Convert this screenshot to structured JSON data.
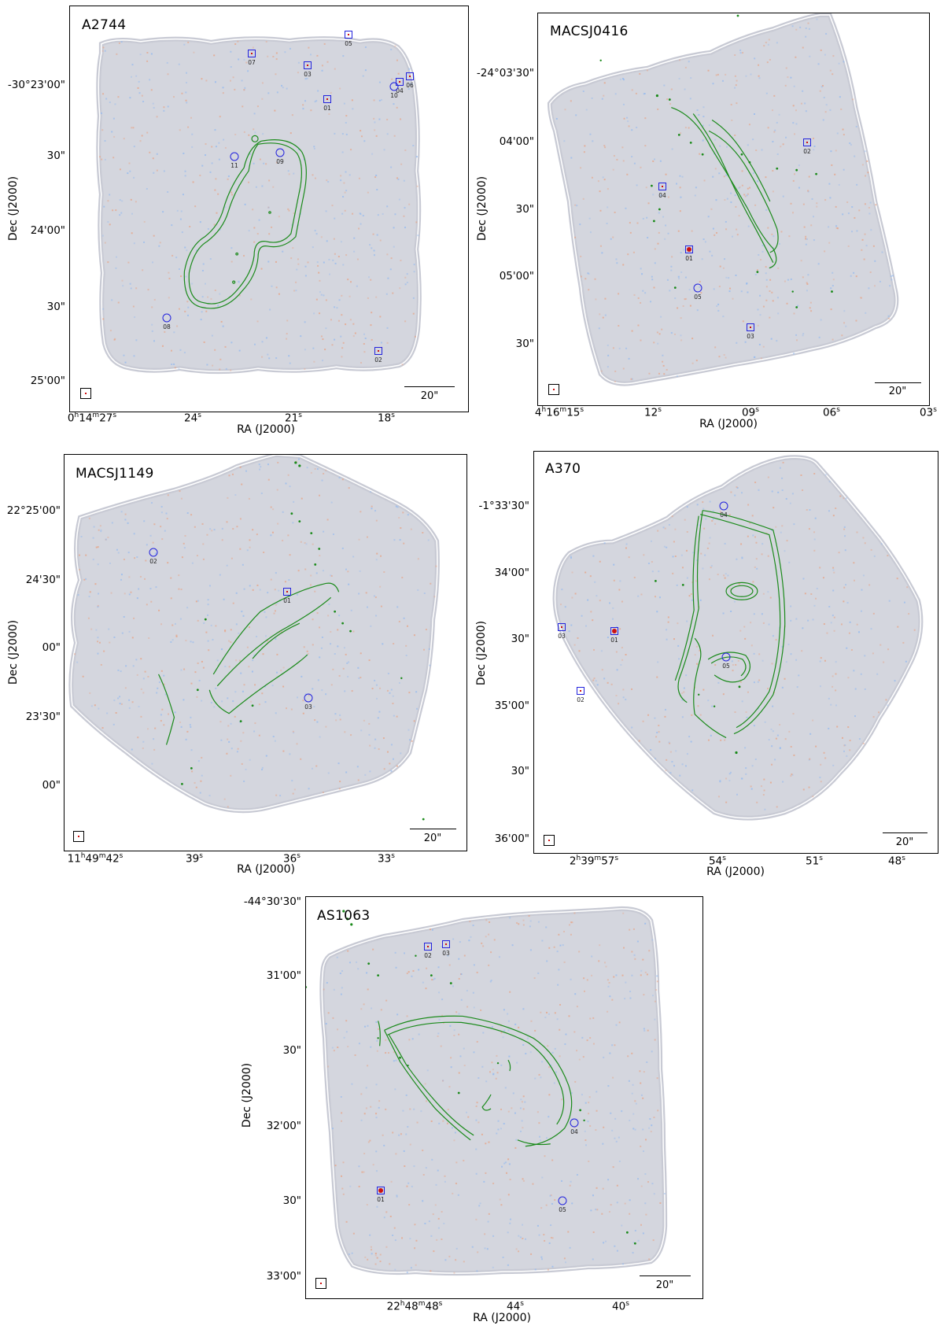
{
  "colors": {
    "contour": "#1a8a1a",
    "marker": "#2222dd",
    "map_fill": "#d4d6de",
    "map_edge": "#ffffff",
    "noise_red": "#e8a080",
    "noise_blue": "#90b8f0"
  },
  "panels": [
    {
      "id": "a2744",
      "title": "A2744",
      "xlabel": "RA (J2000)",
      "ylabel": "Dec (J2000)",
      "yticks": [
        "-30°23'00\"",
        "30\"",
        "24'00\"",
        "30\"",
        "25'00\""
      ],
      "xticks": [
        "0h14m27s",
        "24s",
        "21s",
        "18s"
      ],
      "scale": "20\"",
      "sources": [
        {
          "label": "05",
          "shape": "square"
        },
        {
          "label": "07",
          "shape": "square"
        },
        {
          "label": "03",
          "shape": "square"
        },
        {
          "label": "06",
          "shape": "square"
        },
        {
          "label": "04",
          "shape": "square"
        },
        {
          "label": "10",
          "shape": "circle"
        },
        {
          "label": "01",
          "shape": "square"
        },
        {
          "label": "11",
          "shape": "circle"
        },
        {
          "label": "09",
          "shape": "circle"
        },
        {
          "label": "08",
          "shape": "circle"
        },
        {
          "label": "02",
          "shape": "square"
        }
      ]
    },
    {
      "id": "macsj0416",
      "title": "MACSJ0416",
      "xlabel": "RA (J2000)",
      "ylabel": "Dec (J2000)",
      "yticks": [
        "-24°03'30\"",
        "04'00\"",
        "30\"",
        "05'00\"",
        "30\""
      ],
      "xticks": [
        "4h16m15s",
        "12s",
        "09s",
        "06s",
        "03s"
      ],
      "scale": "20\"",
      "sources": [
        {
          "label": "02",
          "shape": "square"
        },
        {
          "label": "04",
          "shape": "square"
        },
        {
          "label": "01",
          "shape": "square"
        },
        {
          "label": "05",
          "shape": "circle"
        },
        {
          "label": "03",
          "shape": "square"
        }
      ]
    },
    {
      "id": "macsj1149",
      "title": "MACSJ1149",
      "xlabel": "RA (J2000)",
      "ylabel": "Dec (J2000)",
      "yticks": [
        "22°25'00\"",
        "24'30\"",
        "00\"",
        "23'30\"",
        "00\""
      ],
      "xticks": [
        "11h49m42s",
        "39s",
        "36s",
        "33s"
      ],
      "scale": "20\"",
      "sources": [
        {
          "label": "02",
          "shape": "circle"
        },
        {
          "label": "01",
          "shape": "square"
        },
        {
          "label": "03",
          "shape": "circle"
        }
      ]
    },
    {
      "id": "a370",
      "title": "A370",
      "xlabel": "RA (J2000)",
      "ylabel": "Dec (J2000)",
      "yticks": [
        "-1°33'30\"",
        "34'00\"",
        "30\"",
        "35'00\"",
        "30\"",
        "36'00\""
      ],
      "xticks": [
        "2h39m57s",
        "54s",
        "51s",
        "48s"
      ],
      "scale": "20\"",
      "sources": [
        {
          "label": "04",
          "shape": "circle"
        },
        {
          "label": "03",
          "shape": "square"
        },
        {
          "label": "01",
          "shape": "square"
        },
        {
          "label": "05",
          "shape": "circle"
        },
        {
          "label": "02",
          "shape": "square"
        }
      ]
    },
    {
      "id": "as1063",
      "title": "AS1063",
      "xlabel": "RA (J2000)",
      "ylabel": "Dec (J2000)",
      "yticks": [
        "-44°30'30\"",
        "31'00\"",
        "30\"",
        "32'00\"",
        "30\"",
        "33'00\""
      ],
      "xticks": [
        "22h48m48s",
        "44s",
        "40s"
      ],
      "scale": "20\"",
      "sources": [
        {
          "label": "02",
          "shape": "square"
        },
        {
          "label": "03",
          "shape": "square"
        },
        {
          "label": "04",
          "shape": "circle"
        },
        {
          "label": "01",
          "shape": "square"
        },
        {
          "label": "05",
          "shape": "circle"
        }
      ]
    }
  ]
}
